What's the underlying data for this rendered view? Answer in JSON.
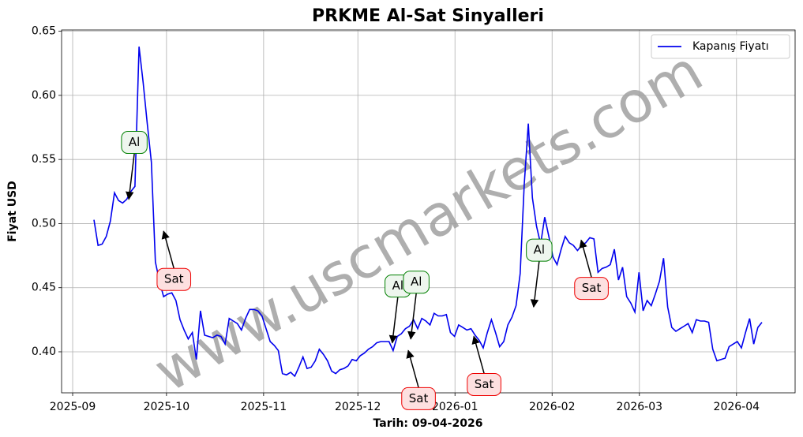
{
  "chart_data": {
    "type": "line",
    "title": "PRKME Al-Sat Sinyalleri",
    "xlabel": "Tarih: 09-04-2026",
    "ylabel": "Fiyat USD",
    "watermark": "www.uscmarkets.com",
    "grid": true,
    "legend": "upper right",
    "xlim": [
      -7.9,
      171.1
    ],
    "ylim": [
      0.368,
      0.651
    ],
    "xticks": [
      {
        "value": -5.2,
        "label": "2025-09"
      },
      {
        "value": 17.7,
        "label": "2025-10"
      },
      {
        "value": 41.4,
        "label": "2025-11"
      },
      {
        "value": 64.4,
        "label": "2025-12"
      },
      {
        "value": 88.1,
        "label": "2026-01"
      },
      {
        "value": 111.8,
        "label": "2026-02"
      },
      {
        "value": 133.1,
        "label": "2026-03"
      },
      {
        "value": 156.8,
        "label": "2026-04"
      }
    ],
    "yticks": [
      {
        "value": 0.4,
        "label": "0.40"
      },
      0.45,
      {
        "value": 0.5,
        "label": "0.50"
      },
      0.55,
      {
        "value": 0.6,
        "label": "0.60"
      },
      0.65
    ],
    "series": [
      {
        "name": "Kapanış Fiyatı",
        "color": "#0000ee",
        "values": [
          0.503,
          0.483,
          0.484,
          0.49,
          0.502,
          0.524,
          0.518,
          0.516,
          0.519,
          0.525,
          0.529,
          0.638,
          0.61,
          0.578,
          0.548,
          0.47,
          0.455,
          0.443,
          0.445,
          0.446,
          0.44,
          0.425,
          0.417,
          0.41,
          0.415,
          0.394,
          0.432,
          0.413,
          0.412,
          0.411,
          0.413,
          0.412,
          0.406,
          0.426,
          0.424,
          0.422,
          0.417,
          0.426,
          0.433,
          0.433,
          0.432,
          0.428,
          0.418,
          0.408,
          0.405,
          0.401,
          0.383,
          0.382,
          0.384,
          0.381,
          0.388,
          0.396,
          0.387,
          0.388,
          0.393,
          0.402,
          0.398,
          0.393,
          0.385,
          0.383,
          0.386,
          0.387,
          0.389,
          0.394,
          0.393,
          0.397,
          0.399,
          0.402,
          0.404,
          0.407,
          0.408,
          0.408,
          0.408,
          0.401,
          0.412,
          0.414,
          0.418,
          0.42,
          0.425,
          0.418,
          0.426,
          0.424,
          0.421,
          0.43,
          0.428,
          0.428,
          0.429,
          0.415,
          0.412,
          0.421,
          0.419,
          0.417,
          0.418,
          0.413,
          0.409,
          0.403,
          0.415,
          0.425,
          0.415,
          0.404,
          0.408,
          0.421,
          0.427,
          0.436,
          0.461,
          0.53,
          0.578,
          0.52,
          0.498,
          0.484,
          0.505,
          0.49,
          0.474,
          0.468,
          0.48,
          0.49,
          0.485,
          0.483,
          0.479,
          0.483,
          0.485,
          0.489,
          0.488,
          0.462,
          0.465,
          0.466,
          0.468,
          0.48,
          0.456,
          0.466,
          0.443,
          0.438,
          0.431,
          0.462,
          0.432,
          0.44,
          0.436,
          0.445,
          0.455,
          0.473,
          0.435,
          0.419,
          0.416,
          0.418,
          0.42,
          0.422,
          0.415,
          0.425,
          0.424,
          0.424,
          0.423,
          0.402,
          0.393,
          0.394,
          0.395,
          0.404,
          0.406,
          0.408,
          0.403,
          0.415,
          0.426,
          0.406,
          0.419,
          0.423
        ]
      }
    ],
    "annotations": [
      {
        "text": "Al",
        "x": 8.5,
        "y": 0.519,
        "placement": "above",
        "color": "#008000",
        "face": "#eef6ee"
      },
      {
        "text": "Sat",
        "x": 17.0,
        "y": 0.494,
        "placement": "below",
        "color": "#ee0000",
        "face": "#fde0e0"
      },
      {
        "text": "Al",
        "x": 72.8,
        "y": 0.407,
        "placement": "above",
        "color": "#008000",
        "face": "#eef6ee"
      },
      {
        "text": "Al",
        "x": 77.3,
        "y": 0.41,
        "placement": "above",
        "color": "#008000",
        "face": "#eef6ee"
      },
      {
        "text": "Sat",
        "x": 76.7,
        "y": 0.401,
        "placement": "below",
        "color": "#ee0000",
        "face": "#fde0e0"
      },
      {
        "text": "Sat",
        "x": 92.7,
        "y": 0.412,
        "placement": "below",
        "color": "#ee0000",
        "face": "#fde0e0"
      },
      {
        "text": "Al",
        "x": 107.3,
        "y": 0.435,
        "placement": "above",
        "color": "#008000",
        "face": "#eef6ee"
      },
      {
        "text": "Sat",
        "x": 118.9,
        "y": 0.487,
        "placement": "below",
        "color": "#ee0000",
        "face": "#fde0e0"
      }
    ]
  }
}
